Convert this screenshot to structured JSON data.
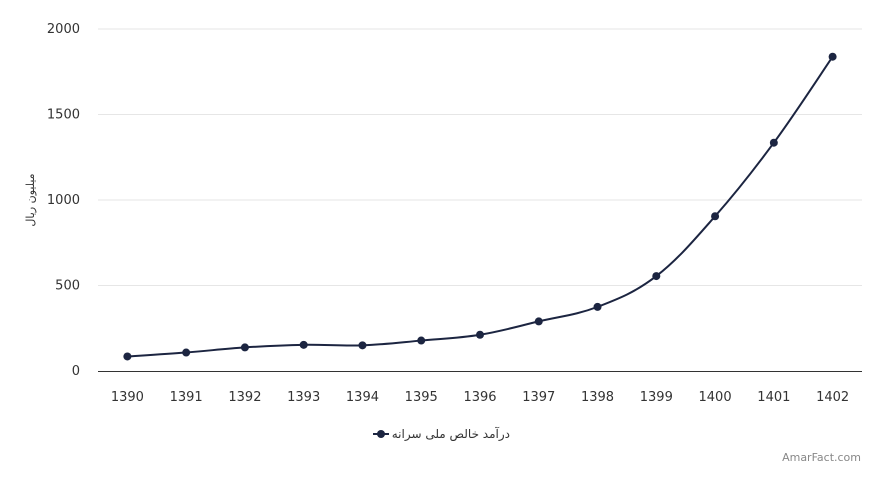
{
  "chart_data": {
    "type": "line",
    "x": [
      "1390",
      "1391",
      "1392",
      "1393",
      "1394",
      "1395",
      "1396",
      "1397",
      "1398",
      "1399",
      "1400",
      "1401",
      "1402"
    ],
    "series": [
      {
        "name": "درآمد خالص ملی سرانه",
        "values": [
          85,
          108,
          138,
          153,
          150,
          178,
          212,
          290,
          375,
          555,
          905,
          1335,
          1838
        ],
        "color": "#1c2541"
      }
    ],
    "ylabel": "میلیون ریال",
    "ylim": [
      0,
      2000
    ],
    "yticks": [
      0,
      500,
      1000,
      1500,
      2000
    ],
    "grid": true,
    "legend_position": "bottom-center"
  },
  "credit": "AmarFact.com"
}
